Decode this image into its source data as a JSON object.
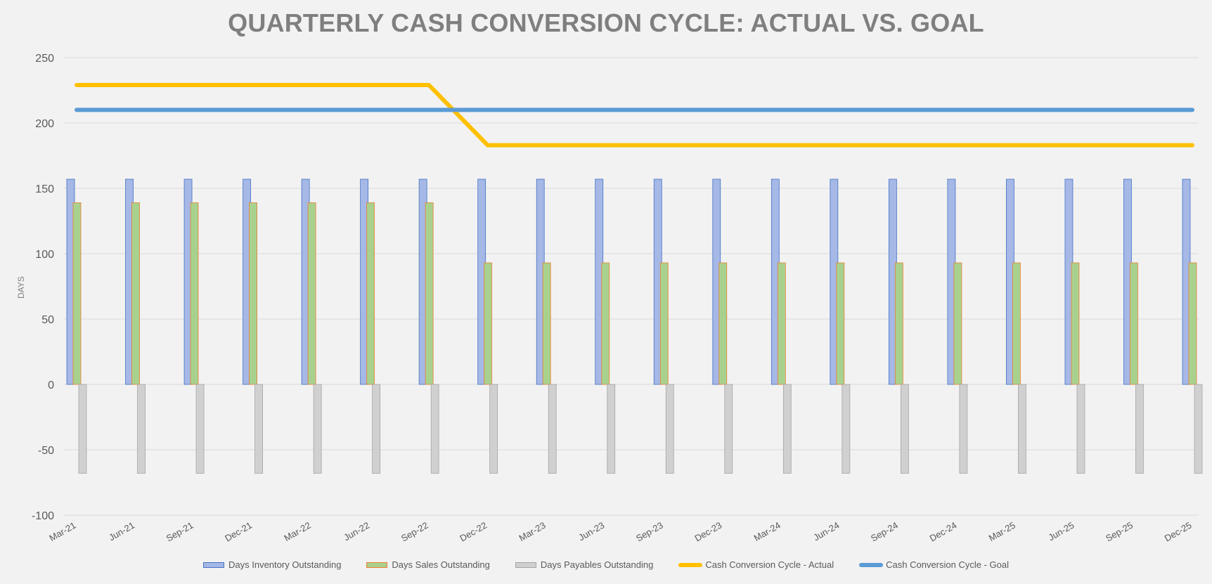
{
  "chart_data": {
    "type": "bar",
    "title": "QUARTERLY CASH CONVERSION CYCLE: ACTUAL VS. GOAL",
    "ylabel": "DAYS",
    "xlabel": "",
    "ylim": [
      -100,
      250
    ],
    "yticks": [
      -100,
      -50,
      0,
      50,
      100,
      150,
      200,
      250
    ],
    "grid": true,
    "legend_position": "bottom",
    "categories": [
      "Mar-21",
      "Jun-21",
      "Sep-21",
      "Dec-21",
      "Mar-22",
      "Jun-22",
      "Sep-22",
      "Dec-22",
      "Mar-23",
      "Jun-23",
      "Sep-23",
      "Dec-23",
      "Mar-24",
      "Jun-24",
      "Sep-24",
      "Dec-24",
      "Mar-25",
      "Jun-25",
      "Sep-25",
      "Dec-25"
    ],
    "series": [
      {
        "name": "Days Inventory Outstanding",
        "kind": "bar",
        "color": "#a5b8e6",
        "stroke": "#4472c4",
        "values": [
          157,
          157,
          157,
          157,
          157,
          157,
          157,
          157,
          157,
          157,
          157,
          157,
          157,
          157,
          157,
          157,
          157,
          157,
          157,
          157
        ]
      },
      {
        "name": "Days Sales Outstanding",
        "kind": "bar",
        "color": "#a9d18e",
        "stroke": "#ed7d31",
        "values": [
          139,
          139,
          139,
          139,
          139,
          139,
          139,
          93,
          93,
          93,
          93,
          93,
          93,
          93,
          93,
          93,
          93,
          93,
          93,
          93
        ]
      },
      {
        "name": "Days Payables Outstanding",
        "kind": "bar",
        "color": "#d0d0d0",
        "stroke": "#a5a5a5",
        "values": [
          -68,
          -68,
          -68,
          -68,
          -68,
          -68,
          -68,
          -68,
          -68,
          -68,
          -68,
          -68,
          -68,
          -68,
          -68,
          -68,
          -68,
          -68,
          -68,
          -68
        ]
      },
      {
        "name": "Cash Conversion Cycle - Actual",
        "kind": "line",
        "color": "#ffc000",
        "values": [
          229,
          229,
          229,
          229,
          229,
          229,
          229,
          183,
          183,
          183,
          183,
          183,
          183,
          183,
          183,
          183,
          183,
          183,
          183,
          183
        ]
      },
      {
        "name": "Cash Conversion Cycle - Goal",
        "kind": "line",
        "color": "#5b9bd5",
        "values": [
          210,
          210,
          210,
          210,
          210,
          210,
          210,
          210,
          210,
          210,
          210,
          210,
          210,
          210,
          210,
          210,
          210,
          210,
          210,
          210
        ]
      }
    ]
  }
}
